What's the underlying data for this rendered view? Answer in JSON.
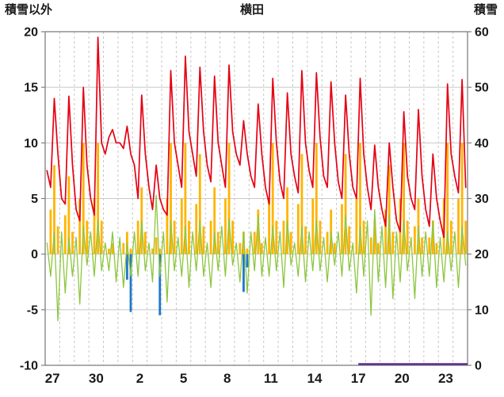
{
  "chart_data": {
    "type": "line",
    "title": "横田",
    "left_axis": {
      "label": "積雪以外",
      "min": -10,
      "max": 20,
      "ticks": [
        20,
        15,
        10,
        5,
        0,
        -5,
        -10
      ]
    },
    "right_axis": {
      "label": "積雪",
      "min": 0,
      "max": 60,
      "ticks": [
        60,
        50,
        40,
        30,
        20,
        10,
        0
      ]
    },
    "x_axis": {
      "days": 29,
      "dt": 0.25,
      "tick_labels": [
        {
          "label": "27",
          "day": 0
        },
        {
          "label": "30",
          "day": 3
        },
        {
          "label": "2",
          "day": 6
        },
        {
          "label": "5",
          "day": 9
        },
        {
          "label": "8",
          "day": 12
        },
        {
          "label": "11",
          "day": 15
        },
        {
          "label": "14",
          "day": 18
        },
        {
          "label": "17",
          "day": 21
        },
        {
          "label": "20",
          "day": 24
        },
        {
          "label": "23",
          "day": 27
        }
      ],
      "grid": "dashed-daily"
    },
    "colors": {
      "red": "#e60012",
      "orange": "#ffb400",
      "green": "#8cc63f",
      "blue": "#1f78c8",
      "purple": "#5b2d8e",
      "grid": "#c8c8c8",
      "frame": "#7f7f7f",
      "text": "#1a1a1a"
    },
    "series": [
      {
        "name": "purple-snow-line",
        "type": "segments",
        "axis": "right",
        "color": "#5b2d8e",
        "width": 2.6,
        "segments": [
          {
            "x0": 21.5,
            "x1": 29,
            "value": 0
          }
        ]
      },
      {
        "name": "blue-bars",
        "type": "bar",
        "axis": "left",
        "color": "#1f78c8",
        "values": [
          0,
          0,
          0,
          0,
          0,
          0,
          0,
          0,
          0,
          0,
          0,
          0,
          0,
          0,
          0,
          0,
          0,
          0,
          0,
          0,
          0,
          0,
          -2.3,
          -5.2,
          0,
          0,
          0,
          0,
          0,
          0,
          0,
          -5.5,
          0,
          0,
          0,
          0,
          0,
          0,
          0,
          0,
          0,
          0,
          0,
          0,
          0,
          0,
          0,
          0,
          0,
          0,
          0,
          0,
          0,
          0,
          -3.4,
          -1.2,
          0,
          0,
          0,
          0,
          0,
          0,
          0,
          0,
          0,
          0,
          0,
          0,
          0,
          0,
          0,
          0,
          0,
          0,
          0,
          0,
          0,
          0,
          0,
          0,
          0,
          0,
          0,
          0,
          0,
          0,
          0,
          0,
          0,
          0,
          0,
          0,
          0,
          0,
          0,
          0,
          0,
          0,
          0,
          0,
          0,
          0,
          0,
          0,
          0,
          0,
          0,
          0,
          0,
          0,
          0,
          0,
          0,
          0,
          0,
          0
        ]
      },
      {
        "name": "orange-bars",
        "type": "bar",
        "axis": "left",
        "color": "#ffb400",
        "values": [
          0,
          4,
          8,
          2.5,
          0,
          3.5,
          7,
          2,
          0,
          5,
          10,
          3,
          0,
          5,
          10,
          3,
          0,
          0.5,
          1,
          0,
          0,
          1,
          2,
          0.5,
          0,
          3,
          6,
          2,
          0,
          0.5,
          1.5,
          0.5,
          0,
          5,
          10,
          3,
          0,
          5,
          10,
          3,
          0,
          4.5,
          9,
          2.5,
          0,
          3,
          6,
          2,
          0,
          5,
          10,
          3,
          0,
          1,
          2,
          0.5,
          0,
          2,
          4,
          1,
          0,
          5,
          10,
          3,
          0,
          3,
          6,
          2,
          0,
          4.5,
          9,
          2.5,
          0,
          5,
          10,
          3,
          0,
          2,
          4,
          1,
          0,
          4.5,
          9,
          2.5,
          0,
          5,
          10,
          3,
          0,
          1.5,
          3,
          1,
          0,
          4,
          8,
          2,
          0,
          5,
          10,
          3,
          0,
          2.5,
          5,
          1.5,
          0,
          1.5,
          3,
          1,
          0,
          5,
          10,
          3,
          0,
          5,
          10,
          3
        ]
      },
      {
        "name": "green-spiky-line",
        "type": "line",
        "axis": "left",
        "color": "#8cc63f",
        "width": 1.3,
        "values": [
          1,
          -2,
          2,
          -6,
          2,
          -3.5,
          1.5,
          -2,
          1.5,
          -4.5,
          2.5,
          -1,
          2,
          -2,
          3,
          -1.5,
          1,
          -1.5,
          2,
          -2.5,
          1.5,
          -3,
          1,
          -2,
          2,
          -2,
          3,
          -1.5,
          1,
          -2.5,
          5.3,
          -2,
          2,
          -4.3,
          3,
          -1.5,
          1.5,
          -2,
          2.5,
          -3,
          2,
          -1.5,
          3,
          -2,
          1,
          -3,
          2,
          -1.5,
          2.5,
          -2,
          3.2,
          -1,
          1,
          -2.5,
          2,
          -3.5,
          2,
          -1.5,
          3.5,
          -2,
          1.5,
          -2,
          2.5,
          -1.5,
          2,
          -3,
          3,
          -1,
          1,
          -2,
          2.5,
          -2.5,
          2,
          -1.5,
          3,
          -1.5,
          1.5,
          -2.5,
          2,
          -1,
          2,
          -2,
          3.5,
          -1.5,
          1,
          -3.5,
          2.5,
          -2,
          3,
          -5.5,
          4,
          -2.5,
          2.5,
          -3,
          3.5,
          -4,
          2,
          -2.5,
          3,
          -1.5,
          1.5,
          -4,
          2.5,
          -2,
          2,
          -2,
          3,
          -3,
          1.5,
          -2.5,
          2,
          -1.5,
          2,
          -3,
          2.5,
          -1
        ]
      },
      {
        "name": "red-temperature-line",
        "type": "line",
        "axis": "left",
        "color": "#e60012",
        "width": 1.7,
        "values": [
          7.5,
          6,
          14,
          9,
          5,
          4.5,
          14.2,
          8,
          4,
          3,
          15,
          8,
          5,
          3.5,
          19.5,
          10,
          9,
          10.5,
          11.2,
          10,
          10,
          9.5,
          11.5,
          9,
          8,
          5,
          14.3,
          9,
          6,
          4,
          8,
          5,
          4,
          3.5,
          16.5,
          10,
          8,
          6,
          17.8,
          11,
          9,
          7,
          16.8,
          11,
          8,
          6.5,
          16,
          10,
          8,
          6,
          17,
          11,
          9,
          8,
          12,
          9,
          7,
          6,
          13.5,
          9,
          6,
          4.5,
          15.8,
          10,
          6.5,
          5,
          14.5,
          9,
          7,
          5.5,
          16.5,
          10,
          7.5,
          6,
          16.3,
          10.5,
          7,
          6,
          15.5,
          10,
          6.5,
          5,
          14.3,
          9,
          6,
          5,
          15.8,
          9,
          6,
          4,
          9.8,
          6,
          4,
          2.5,
          10,
          6,
          3,
          2,
          12.8,
          7,
          5,
          4,
          13,
          7,
          4,
          2.5,
          9,
          5,
          3,
          1.5,
          15.3,
          9,
          7,
          5.5,
          15.7,
          6
        ]
      }
    ]
  }
}
